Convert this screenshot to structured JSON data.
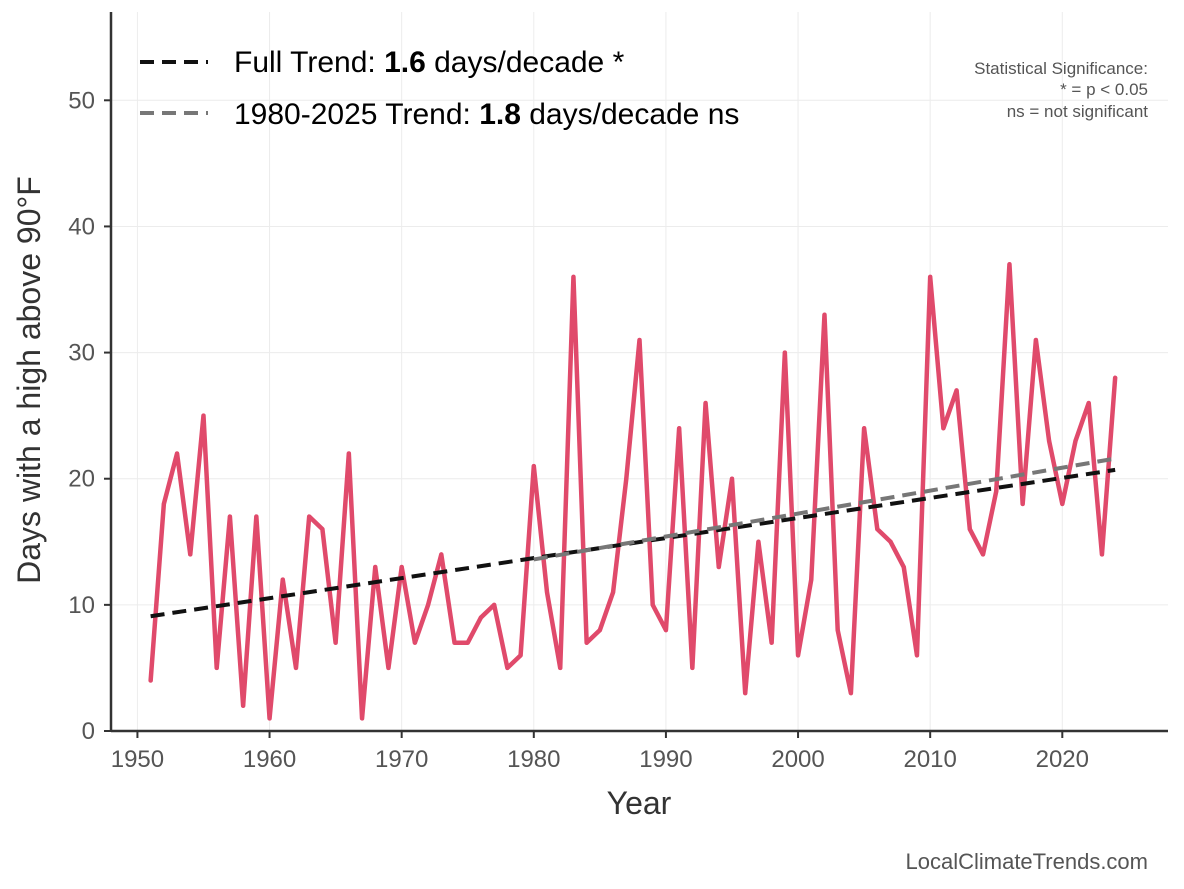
{
  "chart_data": {
    "type": "line",
    "title": "",
    "xlabel": "Year",
    "ylabel": "Days with a high above 90°F",
    "xlim": [
      1948,
      2028
    ],
    "ylim": [
      0,
      57
    ],
    "xticks": [
      1950,
      1960,
      1970,
      1980,
      1990,
      2000,
      2010,
      2020
    ],
    "yticks": [
      0,
      10,
      20,
      30,
      40,
      50
    ],
    "grid": true,
    "series": [
      {
        "name": "Days above 90°F",
        "color": "#e04a6b",
        "x": [
          1951,
          1952,
          1953,
          1954,
          1955,
          1956,
          1957,
          1958,
          1959,
          1960,
          1961,
          1962,
          1963,
          1964,
          1965,
          1966,
          1967,
          1968,
          1969,
          1970,
          1971,
          1972,
          1973,
          1974,
          1975,
          1976,
          1977,
          1978,
          1979,
          1980,
          1981,
          1982,
          1983,
          1984,
          1985,
          1986,
          1987,
          1988,
          1989,
          1990,
          1991,
          1992,
          1993,
          1994,
          1995,
          1996,
          1997,
          1998,
          1999,
          2000,
          2001,
          2002,
          2003,
          2004,
          2005,
          2006,
          2007,
          2008,
          2009,
          2010,
          2011,
          2012,
          2013,
          2014,
          2015,
          2016,
          2017,
          2018,
          2019,
          2020,
          2021,
          2022,
          2023,
          2024
        ],
        "values": [
          4,
          18,
          22,
          14,
          25,
          5,
          17,
          2,
          17,
          1,
          12,
          5,
          17,
          16,
          7,
          22,
          1,
          13,
          5,
          13,
          7,
          10,
          14,
          7,
          7,
          9,
          10,
          5,
          6,
          21,
          11,
          5,
          36,
          7,
          8,
          11,
          20,
          31,
          10,
          8,
          24,
          5,
          26,
          13,
          20,
          3,
          15,
          7,
          30,
          6,
          12,
          33,
          8,
          3,
          24,
          16,
          15,
          13,
          6,
          36,
          24,
          27,
          16,
          14,
          19,
          37,
          18,
          31,
          23,
          18,
          23,
          26,
          14,
          28
        ]
      }
    ],
    "trends": [
      {
        "name": "Full Trend",
        "color": "#111111",
        "x": [
          1951,
          2024
        ],
        "values": [
          9.1,
          20.7
        ],
        "legend_prefix": "Full Trend: ",
        "legend_value": "1.6",
        "legend_suffix": " days/decade *"
      },
      {
        "name": "1980-2025 Trend",
        "color": "#777777",
        "x": [
          1980,
          2024
        ],
        "values": [
          13.6,
          21.6
        ],
        "legend_prefix": "1980-2025 Trend: ",
        "legend_value": "1.8",
        "legend_suffix": " days/decade ns"
      }
    ],
    "significance_note": {
      "line1": "Statistical Significance:",
      "line2": "* = p < 0.05",
      "line3": "ns = not significant"
    },
    "credit": "LocalClimateTrends.com",
    "legend_position": "top-left"
  }
}
